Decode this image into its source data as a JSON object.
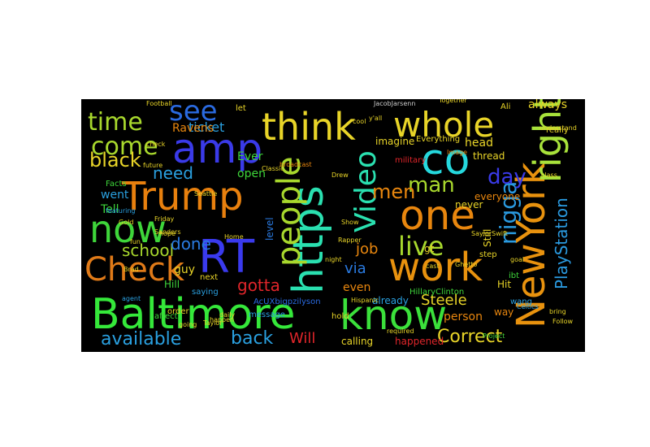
{
  "cloud": {
    "words": [
      {
        "text": "Baltimore",
        "color": "#35e83a"
      },
      {
        "text": "know",
        "color": "#3be03b"
      },
      {
        "text": "work",
        "color": "#e8920e"
      },
      {
        "text": "NewYork",
        "color": "#e8920e"
      },
      {
        "text": "right",
        "color": "#a8e23b"
      },
      {
        "text": "https",
        "color": "#2ae0b0"
      },
      {
        "text": "Trump",
        "color": "#e8800e"
      },
      {
        "text": "RT",
        "color": "#3a3aee"
      },
      {
        "text": "amp",
        "color": "#3a3ae8"
      },
      {
        "text": "think",
        "color": "#e8d428"
      },
      {
        "text": "whole",
        "color": "#e8d428"
      },
      {
        "text": "co",
        "color": "#25d8dd"
      },
      {
        "text": "one",
        "color": "#e8860e"
      },
      {
        "text": "now",
        "color": "#3ed53a"
      },
      {
        "text": "Check",
        "color": "#e07a18"
      },
      {
        "text": "people",
        "color": "#a8d82d"
      },
      {
        "text": "Video",
        "color": "#2ae0b0"
      },
      {
        "text": "live",
        "color": "#a8d82d"
      },
      {
        "text": "see",
        "color": "#2a6ae0"
      },
      {
        "text": "time",
        "color": "#a8d82d"
      },
      {
        "text": "come",
        "color": "#a8d82d"
      },
      {
        "text": "nigga",
        "color": "#2a9ae0"
      },
      {
        "text": "man",
        "color": "#a8d82d"
      },
      {
        "text": "day",
        "color": "#3a3ae8"
      },
      {
        "text": "Correct",
        "color": "#e8d428"
      },
      {
        "text": "available",
        "color": "#2aa0e0"
      },
      {
        "text": "back",
        "color": "#2aa0e0"
      },
      {
        "text": "black",
        "color": "#e8d428"
      },
      {
        "text": "PlayStation",
        "color": "#2a9ae0"
      },
      {
        "text": "school",
        "color": "#a8d82d"
      },
      {
        "text": "done",
        "color": "#2a7ae0"
      },
      {
        "text": "need",
        "color": "#2aa0e0"
      },
      {
        "text": "gotta",
        "color": "#e0252a"
      },
      {
        "text": "job",
        "color": "#e8860e"
      },
      {
        "text": "men",
        "color": "#e8860e"
      },
      {
        "text": "Steele",
        "color": "#e8d428"
      },
      {
        "text": "via",
        "color": "#2a7ae0"
      },
      {
        "text": "Will",
        "color": "#e0252a"
      },
      {
        "text": "ticket",
        "color": "#2aa0e0"
      },
      {
        "text": "Ravens",
        "color": "#e8860e"
      },
      {
        "text": "went",
        "color": "#2aa0e0"
      },
      {
        "text": "Tell",
        "color": "#3ed53a"
      },
      {
        "text": "guy",
        "color": "#e8d428"
      },
      {
        "text": "even",
        "color": "#e8860e"
      },
      {
        "text": "happened",
        "color": "#e0252a"
      },
      {
        "text": "calling",
        "color": "#e8d428"
      },
      {
        "text": "Ever",
        "color": "#3ed53a"
      },
      {
        "text": "open",
        "color": "#3ed53a"
      },
      {
        "text": "imagine",
        "color": "#e8d428"
      },
      {
        "text": "head",
        "color": "#e8d428"
      },
      {
        "text": "thread",
        "color": "#e8d428"
      },
      {
        "text": "always",
        "color": "#e8d428"
      },
      {
        "text": "really",
        "color": "#e8d428"
      },
      {
        "text": "person",
        "color": "#e8860e"
      },
      {
        "text": "way",
        "color": "#e8860e"
      },
      {
        "text": "never",
        "color": "#e8d428"
      },
      {
        "text": "everyone",
        "color": "#e8860e"
      },
      {
        "text": "Still",
        "color": "#e8d428"
      },
      {
        "text": "level",
        "color": "#2a7ae0"
      },
      {
        "text": "Hill",
        "color": "#3ed53a"
      },
      {
        "text": "already",
        "color": "#2aa0e0"
      },
      {
        "text": "HillaryClinton",
        "color": "#3ed53a"
      },
      {
        "text": "AcUXbigpzilyson",
        "color": "#2a6ae0"
      },
      {
        "text": "Everything",
        "color": "#e8d428"
      },
      {
        "text": "Ali",
        "color": "#e8d428"
      },
      {
        "text": "JacobJarsenn",
        "color": "#cccccc"
      },
      {
        "text": "military",
        "color": "#e0252a"
      },
      {
        "text": "ibt",
        "color": "#3ed53a"
      },
      {
        "text": "gt",
        "color": "#e8d428"
      },
      {
        "text": "step",
        "color": "#e8d428"
      },
      {
        "text": "Hit",
        "color": "#e8d428"
      },
      {
        "text": "next",
        "color": "#e8d428"
      },
      {
        "text": "affect",
        "color": "#3ed53a"
      },
      {
        "text": "order",
        "color": "#e8d428"
      },
      {
        "text": "Facts",
        "color": "#3ed53a"
      },
      {
        "text": "hold",
        "color": "#e8d428"
      },
      {
        "text": "let",
        "color": "#e8d428"
      },
      {
        "text": "Football",
        "color": "#e8d428"
      },
      {
        "text": "message",
        "color": "#2aa0e0"
      },
      {
        "text": "agent",
        "color": "#2aa0e0"
      },
      {
        "text": "saying",
        "color": "#2aa0e0"
      },
      {
        "text": "night",
        "color": "#e8d428"
      },
      {
        "text": "wang",
        "color": "#2aa0e0"
      },
      {
        "text": "understand",
        "color": "#e8d428"
      },
      {
        "text": "Together",
        "color": "#e8d428"
      },
      {
        "text": "class",
        "color": "#e8d428"
      },
      {
        "text": "going",
        "color": "#e8d428"
      },
      {
        "text": "bring",
        "color": "#e8d428"
      },
      {
        "text": "goal",
        "color": "#e8d428"
      },
      {
        "text": "happen",
        "color": "#e8d428"
      },
      {
        "text": "Project",
        "color": "#3ed53a"
      },
      {
        "text": "required",
        "color": "#e8d428"
      },
      {
        "text": "Follow",
        "color": "#e8d428"
      },
      {
        "text": "Taylor",
        "color": "#e8d428"
      },
      {
        "text": "Sanders",
        "color": "#e8d428"
      },
      {
        "text": "Classic",
        "color": "#e8d428"
      },
      {
        "text": "Celtics",
        "color": "#2aa0e0"
      },
      {
        "text": "Drew",
        "color": "#e8d428"
      },
      {
        "text": "broadcast",
        "color": "#e8860e"
      },
      {
        "text": "featuring",
        "color": "#2aa0e0"
      },
      {
        "text": "y'all",
        "color": "#e8d428"
      },
      {
        "text": "Hispanic",
        "color": "#e8d428"
      },
      {
        "text": "daily",
        "color": "#e8d428"
      },
      {
        "text": "Image",
        "color": "#e8860e"
      },
      {
        "text": "future",
        "color": "#e8d428"
      },
      {
        "text": "Rapper",
        "color": "#e8d428"
      },
      {
        "text": "check",
        "color": "#e8d428"
      },
      {
        "text": "Gold",
        "color": "#e8d428"
      },
      {
        "text": "hope",
        "color": "#e8d428"
      },
      {
        "text": "Brad",
        "color": "#e8d428"
      },
      {
        "text": "fun",
        "color": "#e8d428"
      },
      {
        "text": "cool",
        "color": "#e8d428"
      },
      {
        "text": "cast",
        "color": "#e8d428"
      },
      {
        "text": "Show",
        "color": "#e8d428"
      },
      {
        "text": "SaylorSwift",
        "color": "#e8d428"
      },
      {
        "text": "Ghetto",
        "color": "#e8d428"
      },
      {
        "text": "Friday",
        "color": "#e8d428"
      },
      {
        "text": "Seattle",
        "color": "#e8d428"
      },
      {
        "text": "Home",
        "color": "#e8d428"
      }
    ]
  }
}
